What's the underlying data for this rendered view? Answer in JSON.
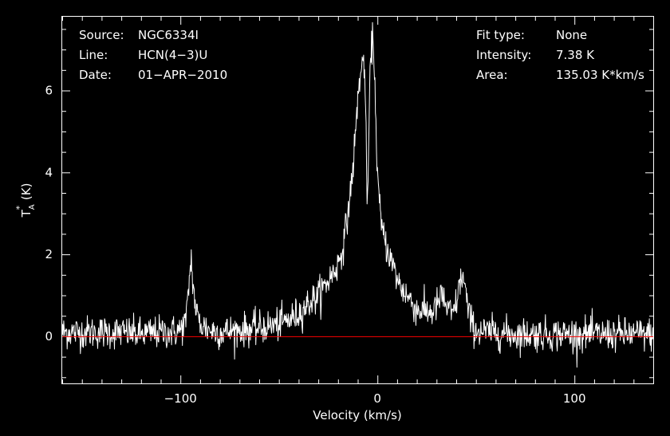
{
  "header": {
    "left": [
      {
        "key": "Source:",
        "value": "NGC6334I"
      },
      {
        "key": "Line:",
        "value": "HCN(4−3)U"
      },
      {
        "key": "Date:",
        "value": "01−APR−2010"
      }
    ],
    "right": [
      {
        "key": "Fit type:",
        "value": "None"
      },
      {
        "key": "Intensity:",
        "value": "7.38 K"
      },
      {
        "key": "Area:",
        "value": "135.03 K*km/s"
      }
    ]
  },
  "colors": {
    "background": "#000000",
    "spectrum": "#ffffff",
    "baseline": "#ff0000",
    "axes": "#ffffff"
  },
  "chart_data": {
    "type": "line",
    "title": "",
    "xlabel": "Velocity (km/s)",
    "ylabel": "T*A (K)",
    "xlim": [
      -160,
      140
    ],
    "ylim": [
      -1.15,
      7.8
    ],
    "xticks": [
      -100,
      0,
      100
    ],
    "yticks": [
      0,
      2,
      4,
      6
    ],
    "xtick_labels": [
      "−100",
      "0",
      "100"
    ],
    "ytick_labels": [
      "0",
      "2",
      "4",
      "6"
    ],
    "grid": false,
    "baseline_y": 0,
    "noise_rms": 0.2,
    "series": [
      {
        "x": [
          -160,
          -150,
          -140,
          -130,
          -120,
          -110,
          -104,
          -100,
          -97,
          -95.5,
          -94.5,
          -93.5,
          -92,
          -90,
          -85,
          -80,
          -70,
          -60,
          -50,
          -45,
          -40,
          -35,
          -30,
          -25,
          -20,
          -17,
          -15,
          -13,
          -12,
          -11,
          -10,
          -9,
          -8,
          -7,
          -6.5,
          -6,
          -5.5,
          -5,
          -4.5,
          -4,
          -3.5,
          -3,
          -2.5,
          -2,
          -1.5,
          -1,
          0,
          1,
          2,
          3,
          4,
          6,
          8,
          10,
          12,
          15,
          18,
          20,
          25,
          28,
          30,
          33,
          35,
          38,
          40,
          41.5,
          43,
          44.5,
          46,
          48,
          50,
          55,
          60,
          70,
          80,
          90,
          100,
          110,
          120,
          130,
          140
        ],
        "y": [
          0.1,
          0.1,
          0.1,
          0.1,
          0.05,
          0.1,
          0.1,
          0.15,
          0.4,
          1.4,
          1.9,
          1.2,
          0.6,
          0.3,
          0.15,
          0.1,
          0.15,
          0.2,
          0.3,
          0.4,
          0.55,
          0.8,
          1.0,
          1.35,
          1.75,
          2.3,
          3.0,
          3.8,
          4.4,
          5.0,
          5.8,
          6.3,
          6.5,
          6.8,
          6.5,
          5.5,
          4.0,
          3.2,
          4.5,
          5.8,
          6.6,
          7.0,
          7.3,
          7.1,
          6.5,
          5.6,
          4.0,
          3.2,
          2.7,
          2.5,
          2.3,
          2.0,
          1.7,
          1.4,
          1.2,
          1.0,
          0.8,
          0.65,
          0.6,
          0.6,
          0.75,
          1.0,
          0.7,
          0.5,
          0.8,
          1.2,
          1.5,
          1.2,
          0.6,
          0.3,
          0.15,
          0.1,
          0.1,
          0.05,
          0.05,
          0.05,
          0.05,
          0.05,
          0.05,
          0.05,
          0.05
        ]
      }
    ]
  }
}
